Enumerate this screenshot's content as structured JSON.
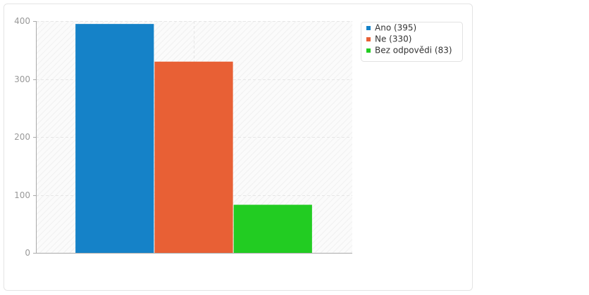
{
  "chart_data": {
    "type": "bar",
    "categories": [
      null
    ],
    "series": [
      {
        "name": "Ano (395)",
        "color": "#1582c8",
        "values": [
          395
        ]
      },
      {
        "name": "Ne (330)",
        "color": "#e86035",
        "values": [
          330
        ]
      },
      {
        "name": "Bez odpovědi (83)",
        "color": "#22cc22",
        "values": [
          83
        ]
      }
    ],
    "ylim": [
      0,
      400
    ],
    "yticks": [
      0,
      100,
      200,
      300,
      400
    ],
    "grid": true,
    "legend": "right"
  }
}
